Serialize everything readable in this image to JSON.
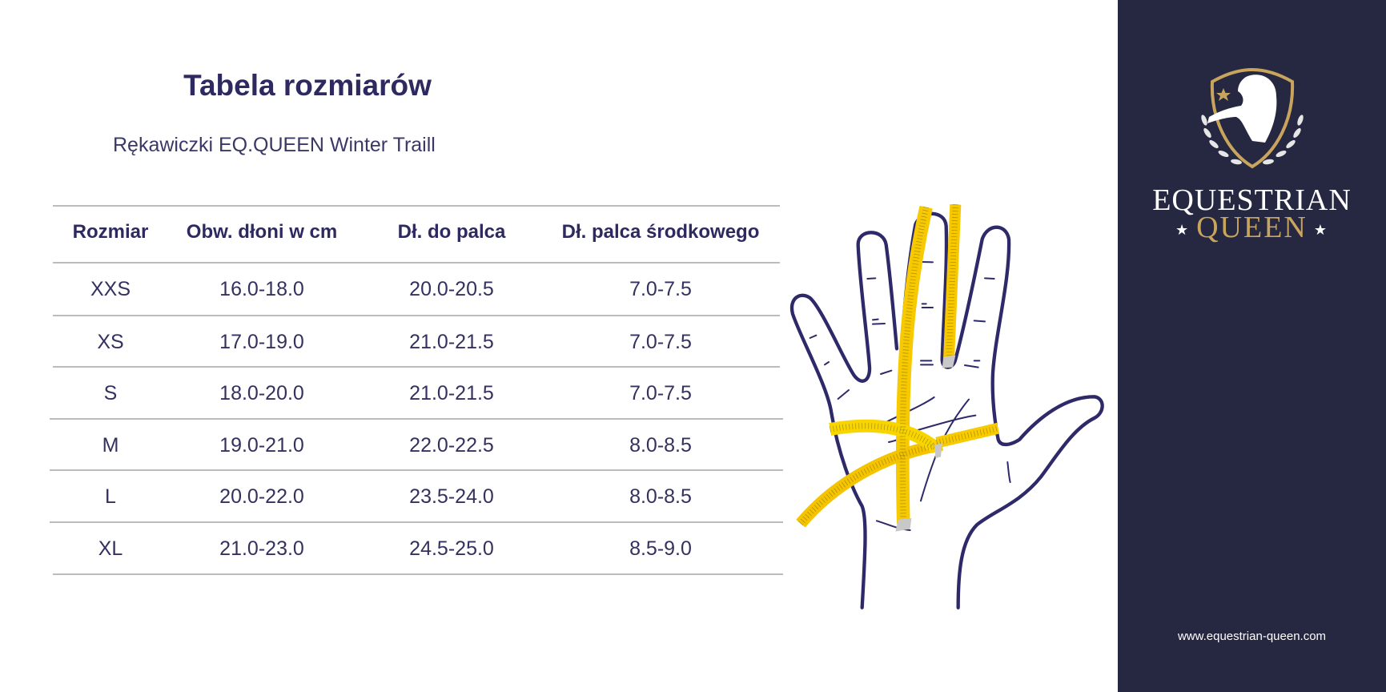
{
  "title": "Tabela rozmiarów",
  "subtitle": "Rękawiczki EQ.QUEEN Winter Traill",
  "table": {
    "headers": [
      "Rozmiar",
      "Obw. dłoni w cm",
      "Dł. do palca",
      "Dł. palca środkowego"
    ],
    "rows": [
      [
        "XXS",
        "16.0-18.0",
        "20.0-20.5",
        "7.0-7.5"
      ],
      [
        "XS",
        "17.0-19.0",
        "21.0-21.5",
        "7.0-7.5"
      ],
      [
        "S",
        "18.0-20.0",
        "21.0-21.5",
        "7.0-7.5"
      ],
      [
        "M",
        "19.0-21.0",
        "22.0-22.5",
        "8.0-8.5"
      ],
      [
        "L",
        "20.0-22.0",
        "23.5-24.0",
        "8.0-8.5"
      ],
      [
        "XL",
        "21.0-23.0",
        "24.5-25.0",
        "8.5-9.0"
      ]
    ]
  },
  "brand": {
    "line1": "EQUESTRIAN",
    "line2": "QUEEN",
    "website": "www.equestrian-queen.com",
    "panel_color": "#252840",
    "gold": "#c9a45c"
  },
  "colors": {
    "text": "#2e2a60",
    "tape": "#f6c800",
    "hand_outline": "#2e2a6a"
  }
}
